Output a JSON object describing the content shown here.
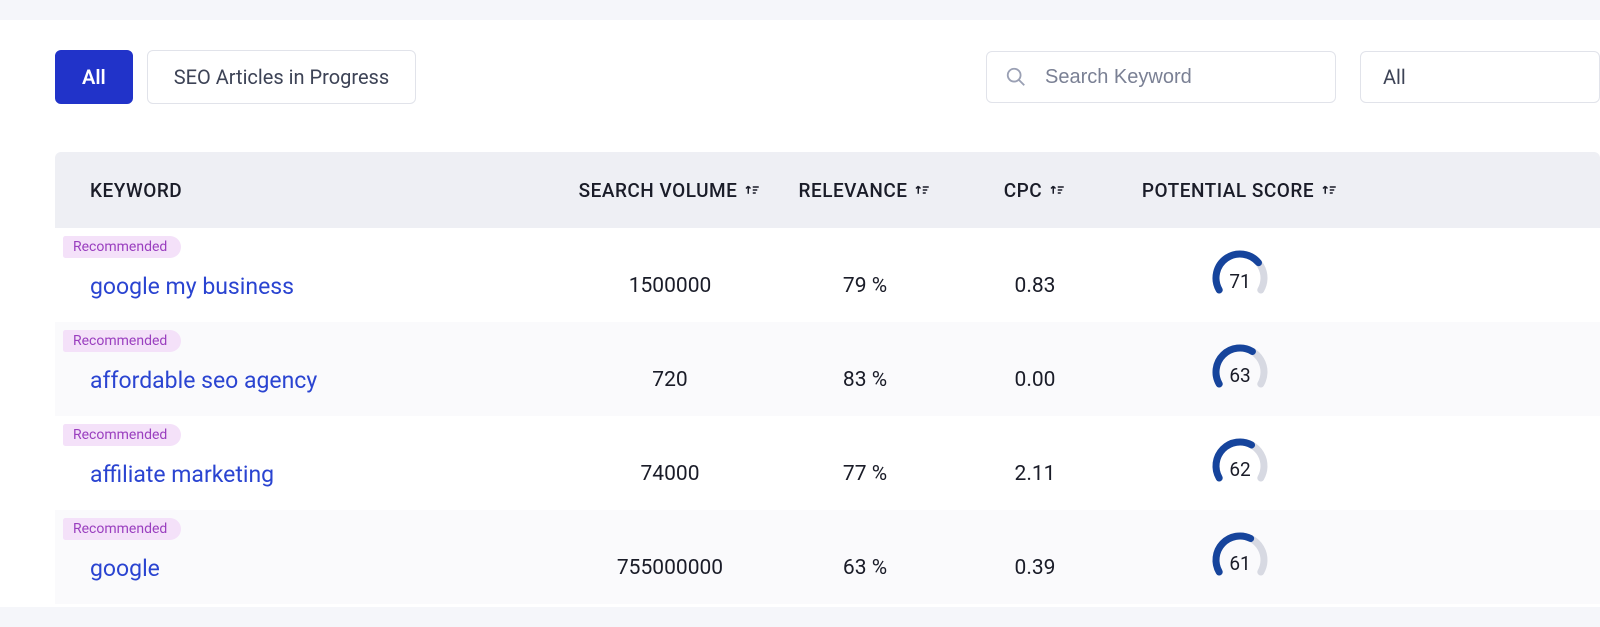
{
  "colors": {
    "page_bg": "#f5f6fa",
    "panel_bg": "#ffffff",
    "primary": "#2133c9",
    "border": "#e1e3ea",
    "thead_bg": "#eeeff4",
    "text": "#1a1c28",
    "link": "#2a44d1",
    "badge_bg": "#f4e1f9",
    "badge_text": "#9a3fbf",
    "gauge_track": "#d7d9e2",
    "gauge_value": "#16449c",
    "alt_row_bg": "#fafafc"
  },
  "toolbar": {
    "tabs": [
      {
        "label": "All",
        "active": true
      },
      {
        "label": "SEO Articles in Progress",
        "active": false
      }
    ],
    "search_placeholder": "Search Keyword",
    "filter_label": "All"
  },
  "table": {
    "columns": [
      {
        "key": "keyword",
        "label": "KEYWORD",
        "sortable": false
      },
      {
        "key": "volume",
        "label": "SEARCH VOLUME",
        "sortable": true
      },
      {
        "key": "relev",
        "label": "RELEVANCE",
        "sortable": true
      },
      {
        "key": "cpc",
        "label": "CPC",
        "sortable": true
      },
      {
        "key": "score",
        "label": "POTENTIAL SCORE",
        "sortable": true
      }
    ],
    "rows": [
      {
        "badge": "Recommended",
        "keyword": "google my business",
        "volume": "1500000",
        "relevance": "79 %",
        "cpc": "0.83",
        "score": 71
      },
      {
        "badge": "Recommended",
        "keyword": "affordable seo agency",
        "volume": "720",
        "relevance": "83 %",
        "cpc": "0.00",
        "score": 63
      },
      {
        "badge": "Recommended",
        "keyword": "affiliate marketing",
        "volume": "74000",
        "relevance": "77 %",
        "cpc": "2.11",
        "score": 62
      },
      {
        "badge": "Recommended",
        "keyword": "google",
        "volume": "755000000",
        "relevance": "63 %",
        "cpc": "0.39",
        "score": 61
      }
    ],
    "gauge": {
      "max": 100,
      "start_angle": -210,
      "end_angle": 30
    }
  }
}
